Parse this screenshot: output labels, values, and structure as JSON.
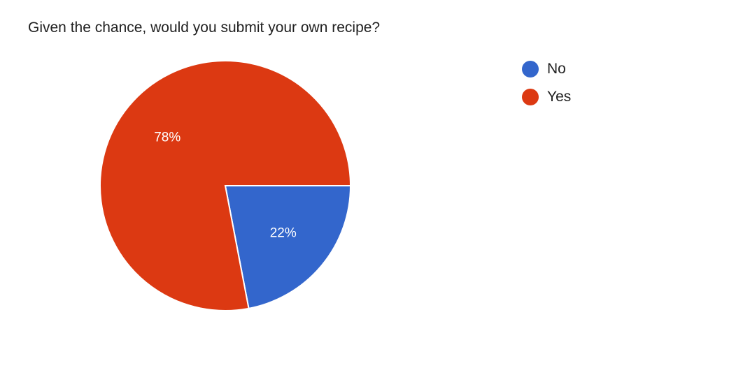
{
  "chart_data": {
    "type": "pie",
    "title": "Given the chance, would you submit your own recipe?",
    "slices": [
      {
        "label": "No",
        "value": 22,
        "display": "22%",
        "color": "#3366cc"
      },
      {
        "label": "Yes",
        "value": 78,
        "display": "78%",
        "color": "#dc3912"
      }
    ],
    "legend_position": "top-right"
  }
}
